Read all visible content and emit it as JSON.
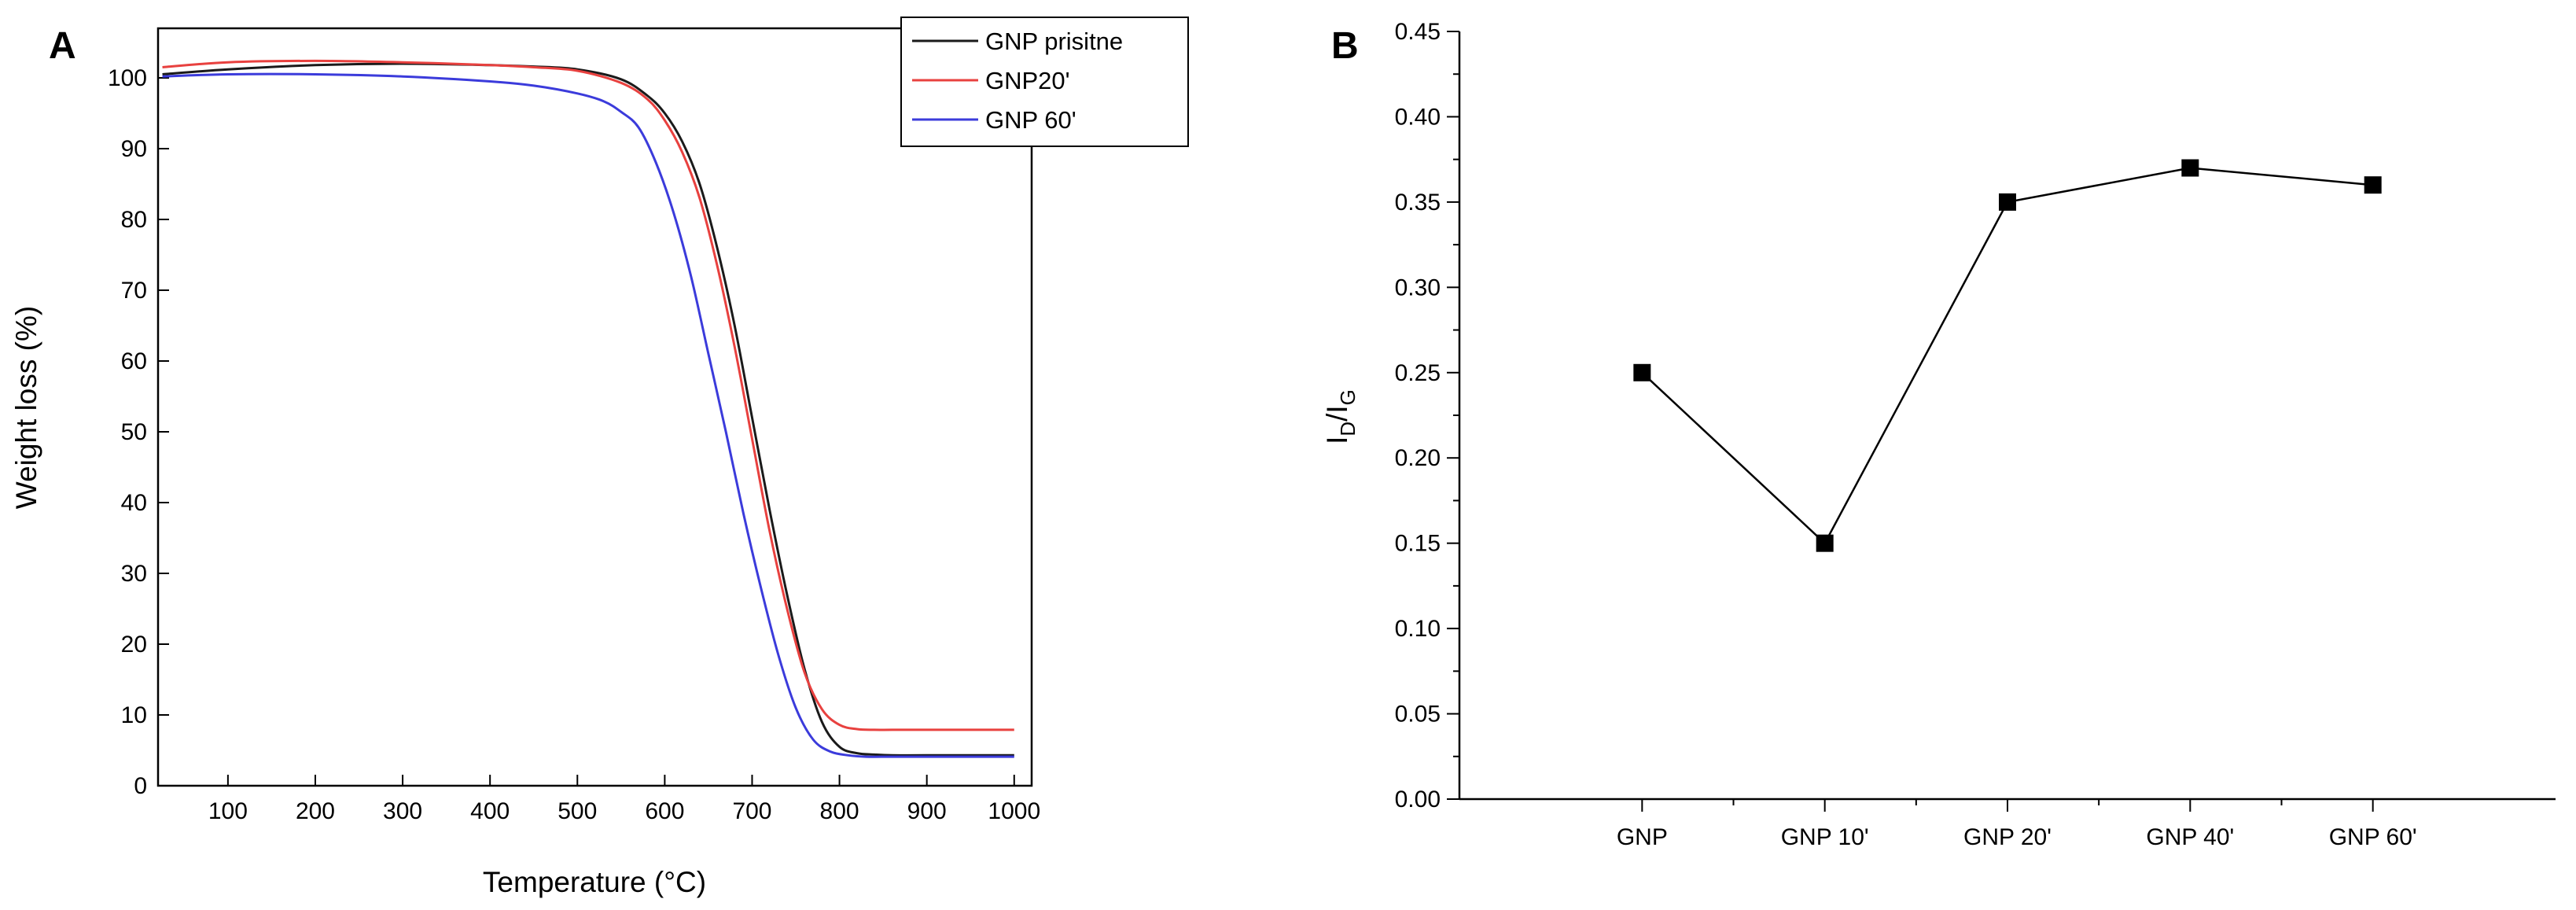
{
  "chart_data": [
    {
      "panel": "A",
      "type": "line",
      "xlabel": "Temperature (°C)",
      "ylabel": "Weight loss (%)",
      "xlim": [
        20,
        1020
      ],
      "ylim": [
        0,
        107
      ],
      "x_ticks": [
        100,
        200,
        300,
        400,
        500,
        600,
        700,
        800,
        900,
        1000
      ],
      "y_ticks": [
        0,
        10,
        20,
        30,
        40,
        50,
        60,
        70,
        80,
        90,
        100
      ],
      "legend": [
        "GNP prisitne",
        "GNP20'",
        "GNP 60'"
      ],
      "legend_position": "top-right",
      "series": [
        {
          "name": "GNP prisitne",
          "color": "#1a1a1a",
          "x": [
            25,
            100,
            200,
            300,
            400,
            450,
            500,
            550,
            580,
            600,
            620,
            640,
            660,
            680,
            700,
            720,
            740,
            760,
            780,
            800,
            820,
            840,
            860,
            900,
            1000
          ],
          "y": [
            100.5,
            101.2,
            101.8,
            102.0,
            101.8,
            101.6,
            101.2,
            99.8,
            97.5,
            95.0,
            91.0,
            85.0,
            76.0,
            65.0,
            52.0,
            39.0,
            27.0,
            16.5,
            9.0,
            5.5,
            4.6,
            4.4,
            4.3,
            4.3,
            4.3
          ]
        },
        {
          "name": "GNP20'",
          "color": "#e8413f",
          "x": [
            25,
            100,
            200,
            300,
            400,
            450,
            500,
            550,
            580,
            600,
            620,
            640,
            660,
            680,
            700,
            720,
            740,
            760,
            780,
            800,
            820,
            840,
            860,
            900,
            1000
          ],
          "y": [
            101.5,
            102.2,
            102.4,
            102.2,
            101.8,
            101.5,
            101.0,
            99.3,
            97.0,
            94.0,
            89.5,
            83.0,
            73.5,
            62.0,
            49.0,
            36.0,
            25.0,
            16.0,
            10.8,
            8.6,
            8.0,
            7.9,
            7.9,
            7.9,
            7.9
          ]
        },
        {
          "name": "GNP 60'",
          "color": "#3b3bdb",
          "x": [
            25,
            100,
            200,
            300,
            400,
            450,
            500,
            530,
            550,
            570,
            590,
            610,
            630,
            650,
            670,
            690,
            710,
            730,
            750,
            770,
            790,
            810,
            830,
            860,
            900,
            1000
          ],
          "y": [
            100.2,
            100.5,
            100.5,
            100.2,
            99.5,
            98.9,
            97.8,
            96.7,
            95.2,
            93.0,
            88.0,
            81.0,
            72.0,
            61.0,
            50.0,
            38.5,
            28.0,
            18.5,
            11.0,
            6.5,
            4.8,
            4.3,
            4.1,
            4.1,
            4.1,
            4.1
          ]
        }
      ]
    },
    {
      "panel": "B",
      "type": "line",
      "marker": "square",
      "categories": [
        "GNP",
        "GNP 10'",
        "GNP 20'",
        "GNP 40'",
        "GNP 60'"
      ],
      "values": [
        0.25,
        0.15,
        0.35,
        0.37,
        0.36
      ],
      "ylabel_main": "I",
      "ylabel_sub1": "D",
      "ylabel_mid": "/I",
      "ylabel_sub2": "G",
      "xlabel": "",
      "ylim": [
        0.0,
        0.45
      ],
      "y_ticks": [
        "0.00",
        "0.05",
        "0.10",
        "0.15",
        "0.20",
        "0.25",
        "0.30",
        "0.35",
        "0.40",
        "0.45"
      ],
      "color": "#000000"
    }
  ]
}
